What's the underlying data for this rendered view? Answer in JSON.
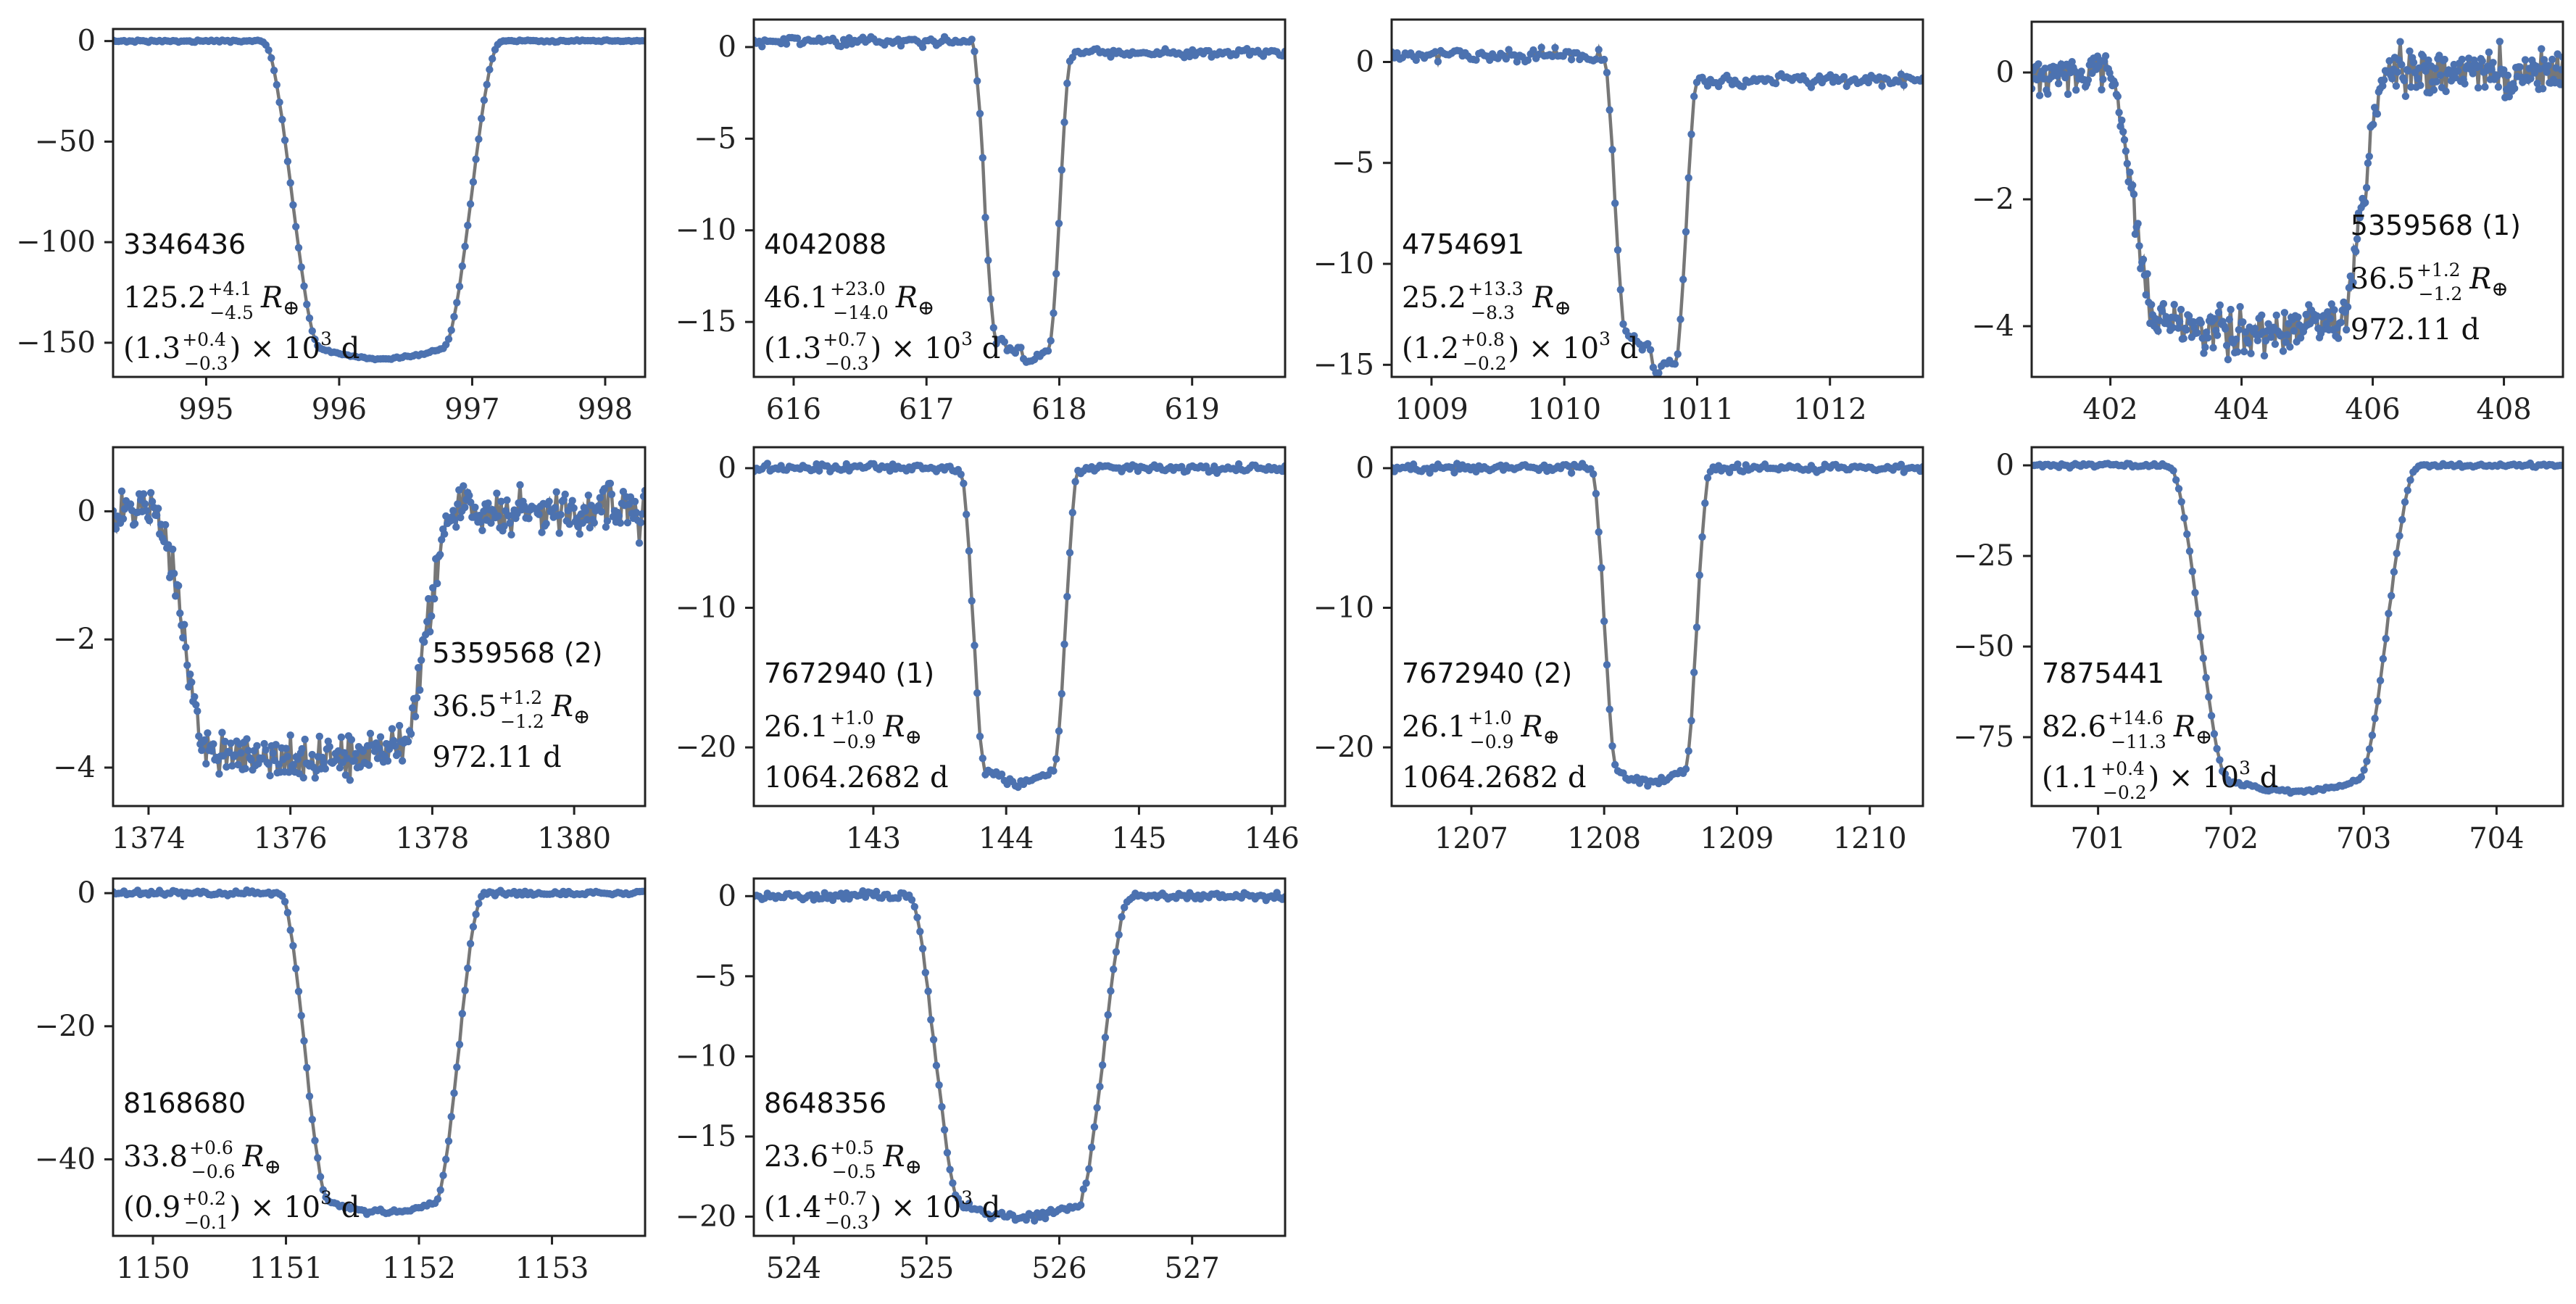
{
  "chart_data": [
    {
      "type": "line",
      "panel_label": "3346436",
      "annotations": [
        "125.2",
        "+4.1",
        "−4.5",
        "R",
        "⊕",
        "(1.3",
        "+0.4",
        "−0.3",
        ") × 10",
        "3",
        " d"
      ],
      "annotation_layout": "three-line",
      "x_range": [
        994.3,
        998.3
      ],
      "y_range": [
        -167,
        6
      ],
      "x_ticks": [
        "995",
        "996",
        "997",
        "998"
      ],
      "y_ticks": [
        "0",
        "−50",
        "−100",
        "−150"
      ],
      "transit": {
        "center": 996.32,
        "duration": 0.9,
        "ingress": 0.45,
        "depth": 158,
        "noise": 0.3
      },
      "text_position": "lower-left"
    },
    {
      "type": "line",
      "panel_label": "4042088",
      "annotations": [
        "46.1",
        "+23.0",
        "−14.0",
        "R",
        "⊕",
        "(1.3",
        "+0.7",
        "−0.3",
        ") × 10",
        "3",
        " d"
      ],
      "annotation_layout": "three-line",
      "x_range": [
        615.7,
        619.7
      ],
      "y_range": [
        -18,
        1.5
      ],
      "x_ticks": [
        "616",
        "617",
        "618",
        "619"
      ],
      "y_ticks": [
        "0",
        "−5",
        "−10",
        "−15"
      ],
      "transit": {
        "center": 617.72,
        "duration": 0.38,
        "ingress": 0.19,
        "depth": 16.8,
        "noise": 0.15,
        "pre_level": 0.3,
        "post_level": -0.3
      },
      "text_position": "lower-left"
    },
    {
      "type": "line",
      "panel_label": "4754691",
      "annotations": [
        "25.2",
        "+13.3",
        "−8.3",
        "R",
        "⊕",
        "(1.2",
        "+0.8",
        "−0.2",
        ") × 10",
        "3",
        " d"
      ],
      "annotation_layout": "three-line",
      "x_range": [
        1008.7,
        1012.7
      ],
      "y_range": [
        -15.6,
        2.1
      ],
      "x_ticks": [
        "1009",
        "1010",
        "1011",
        "1012"
      ],
      "y_ticks": [
        "0",
        "−5",
        "−10",
        "−15"
      ],
      "transit": {
        "center": 1010.65,
        "duration": 0.36,
        "ingress": 0.18,
        "depth": 14.4,
        "noise": 0.2,
        "pre_level": 0.3,
        "post_level": -0.9
      },
      "text_position": "lower-left"
    },
    {
      "type": "line",
      "panel_label": "5359568 (1)",
      "annotations": [
        "36.5",
        "+1.2",
        "−1.2",
        "R",
        "⊕",
        "972.11 d"
      ],
      "annotation_layout": "period",
      "x_range": [
        400.8,
        408.9
      ],
      "y_range": [
        -4.8,
        0.8
      ],
      "x_ticks": [
        "402",
        "404",
        "406",
        "408"
      ],
      "y_ticks": [
        "0",
        "−2",
        "−4"
      ],
      "transit": {
        "center": 404.1,
        "duration": 2.7,
        "ingress": 0.8,
        "depth": 4.1,
        "noise": 0.22
      },
      "text_position": "right"
    },
    {
      "type": "line",
      "panel_label": "5359568 (2)",
      "annotations": [
        "36.5",
        "+1.2",
        "−1.2",
        "R",
        "⊕",
        "972.11 d"
      ],
      "annotation_layout": "period",
      "x_range": [
        1373.5,
        1381.0
      ],
      "y_range": [
        -4.6,
        1.0
      ],
      "x_ticks": [
        "1374",
        "1376",
        "1378",
        "1380"
      ],
      "y_ticks": [
        "0",
        "−2",
        "−4"
      ],
      "transit": {
        "center": 1376.2,
        "duration": 2.65,
        "ingress": 0.8,
        "depth": 3.9,
        "noise": 0.22
      },
      "text_position": "right"
    },
    {
      "type": "line",
      "panel_label": "7672940 (1)",
      "annotations": [
        "26.1",
        "+1.0",
        "−0.9",
        "R",
        "⊕",
        "1064.2682 d"
      ],
      "annotation_layout": "period",
      "x_range": [
        142.1,
        146.1
      ],
      "y_range": [
        -24.2,
        1.5
      ],
      "x_ticks": [
        "143",
        "144",
        "145",
        "146"
      ],
      "y_ticks": [
        "0",
        "−10",
        "−20"
      ],
      "transit": {
        "center": 144.1,
        "duration": 0.5,
        "ingress": 0.2,
        "depth": 22.5,
        "noise": 0.18
      },
      "text_position": "lower-left"
    },
    {
      "type": "line",
      "panel_label": "7672940 (2)",
      "annotations": [
        "26.1",
        "+1.0",
        "−0.9",
        "R",
        "⊕",
        "1064.2682 d"
      ],
      "annotation_layout": "period",
      "x_range": [
        1206.4,
        1210.4
      ],
      "y_range": [
        -24.2,
        1.5
      ],
      "x_ticks": [
        "1207",
        "1208",
        "1209",
        "1210"
      ],
      "y_ticks": [
        "0",
        "−10",
        "−20"
      ],
      "transit": {
        "center": 1208.35,
        "duration": 0.5,
        "ingress": 0.2,
        "depth": 22.5,
        "noise": 0.18
      },
      "text_position": "lower-left"
    },
    {
      "type": "line",
      "panel_label": "7875441",
      "annotations": [
        "82.6",
        "+14.6",
        "−11.3",
        "R",
        "⊕",
        "(1.1",
        "+0.4",
        "−0.2",
        ") × 10",
        "3",
        " d"
      ],
      "annotation_layout": "three-line",
      "x_range": [
        700.5,
        704.5
      ],
      "y_range": [
        -94,
        5
      ],
      "x_ticks": [
        "701",
        "702",
        "703",
        "704"
      ],
      "y_ticks": [
        "0",
        "−25",
        "−50",
        "−75"
      ],
      "transit": {
        "center": 702.47,
        "duration": 0.95,
        "ingress": 0.47,
        "depth": 90,
        "noise": 0.35
      },
      "text_position": "lower-left"
    },
    {
      "type": "line",
      "panel_label": "8168680",
      "annotations": [
        "33.8",
        "+0.6",
        "−0.6",
        "R",
        "⊕",
        "(0.9",
        "+0.2",
        "−0.1",
        ") × 10",
        "3",
        " d"
      ],
      "annotation_layout": "three-line",
      "x_range": [
        1149.7,
        1153.7
      ],
      "y_range": [
        -51.5,
        2.2
      ],
      "x_ticks": [
        "1150",
        "1151",
        "1152",
        "1153"
      ],
      "y_ticks": [
        "0",
        "−20",
        "−40"
      ],
      "transit": {
        "center": 1151.72,
        "duration": 0.78,
        "ingress": 0.38,
        "depth": 48,
        "noise": 0.25
      },
      "text_position": "lower-left"
    },
    {
      "type": "line",
      "panel_label": "8648356",
      "annotations": [
        "23.6",
        "+0.5",
        "−0.5",
        "R",
        "⊕",
        "(1.4",
        "+0.7",
        "−0.3",
        ") × 10",
        "3",
        " d"
      ],
      "annotation_layout": "three-line",
      "x_range": [
        523.7,
        527.7
      ],
      "y_range": [
        -21.2,
        1.1
      ],
      "x_ticks": [
        "524",
        "525",
        "526",
        "527"
      ],
      "y_ticks": [
        "0",
        "−5",
        "−10",
        "−15",
        "−20"
      ],
      "transit": {
        "center": 525.7,
        "duration": 0.85,
        "ingress": 0.42,
        "depth": 20,
        "noise": 0.18
      },
      "text_position": "lower-left"
    }
  ],
  "colors": {
    "data_points": "#4C72B0",
    "model_line": "#777777",
    "axes": "#222222",
    "text": "#111111",
    "background": "#ffffff"
  }
}
